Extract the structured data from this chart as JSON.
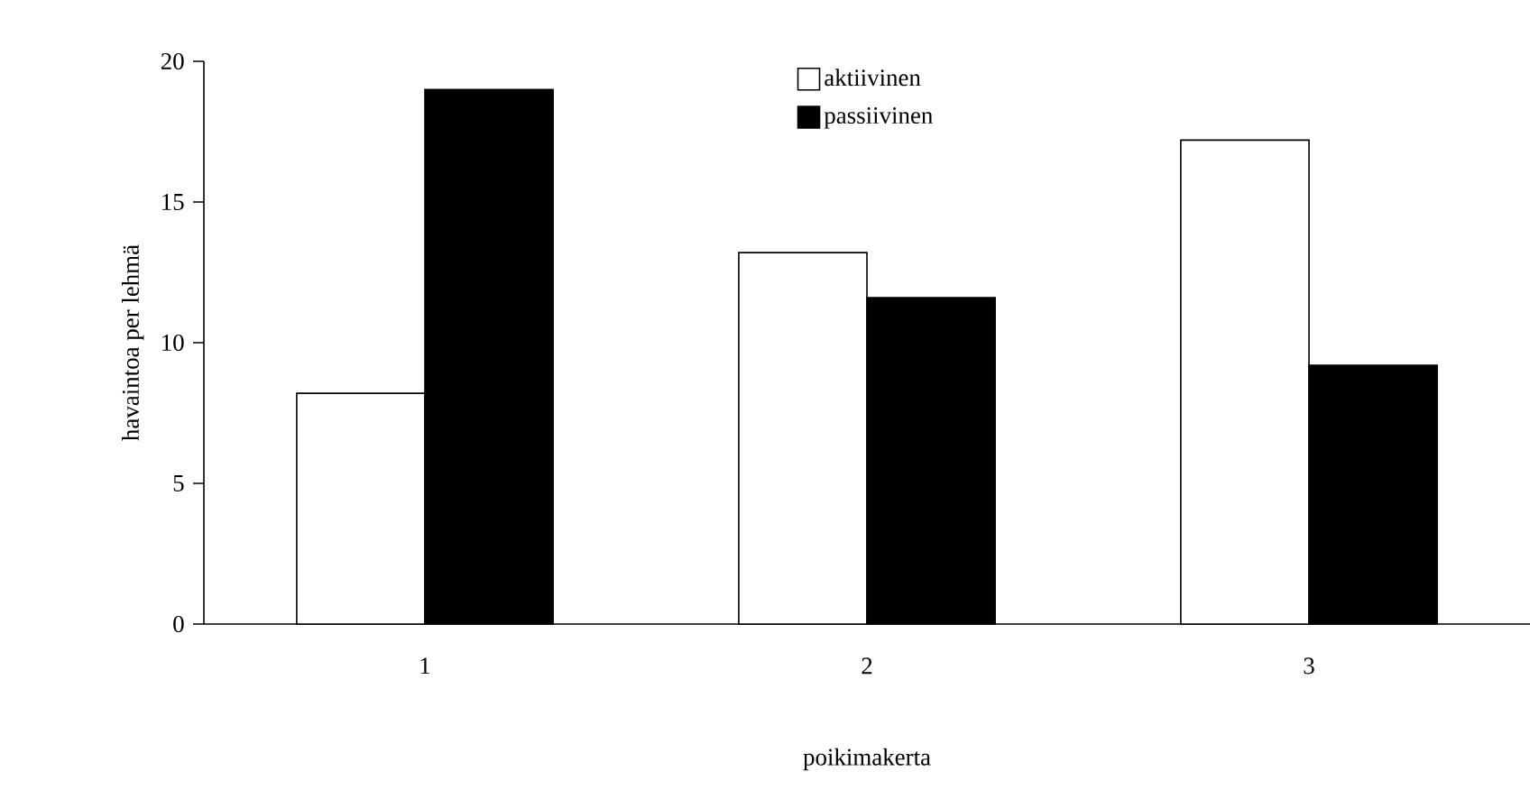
{
  "chart_data": {
    "type": "bar",
    "xlabel": "poikimakerta",
    "ylabel": "havaintoa per lehmä",
    "categories": [
      "1",
      "2",
      "3"
    ],
    "series": [
      {
        "name": "aktiivinen",
        "color": "#ffffff",
        "values": [
          8.2,
          13.2,
          17.2
        ]
      },
      {
        "name": "passiivinen",
        "color": "#000000",
        "values": [
          19.0,
          11.6,
          9.2
        ]
      }
    ],
    "ylim": [
      0,
      20
    ],
    "yticks": [
      0,
      5,
      10,
      15,
      20
    ],
    "legend": "top"
  }
}
